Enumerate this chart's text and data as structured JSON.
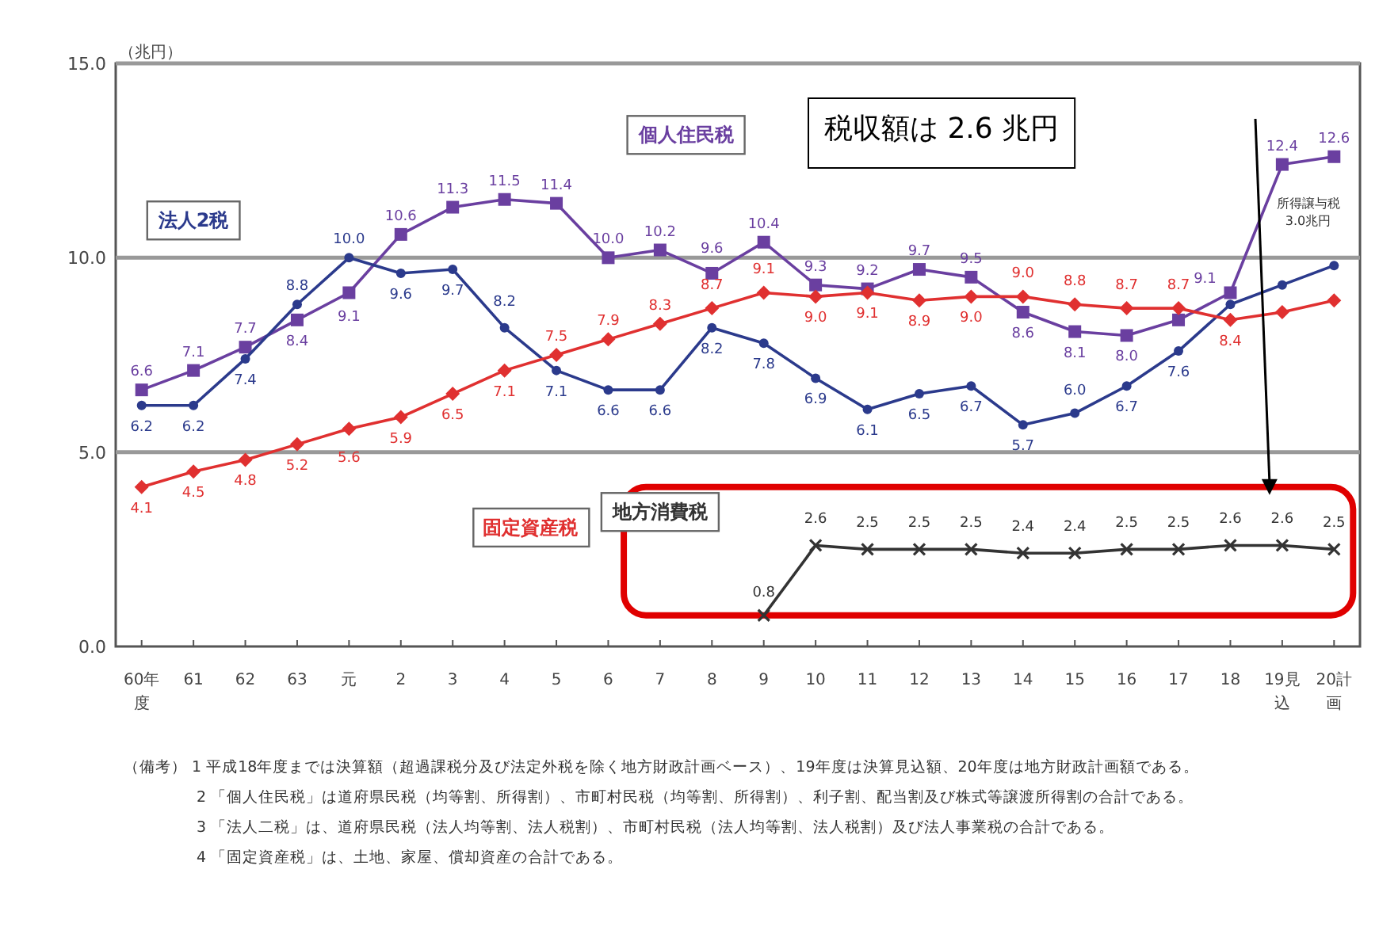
{
  "chart_data": {
    "type": "line",
    "ylabel": "（兆円）",
    "categories": [
      "60年度",
      "61",
      "62",
      "63",
      "元",
      "2",
      "3",
      "4",
      "5",
      "6",
      "7",
      "8",
      "9",
      "10",
      "11",
      "12",
      "13",
      "14",
      "15",
      "16",
      "17",
      "18",
      "19見込",
      "20計画"
    ],
    "ylim": [
      0,
      15
    ],
    "yticks": [
      {
        "value": 0,
        "label": "0.0"
      },
      {
        "value": 5,
        "label": "5.0"
      },
      {
        "value": 10,
        "label": "10.0"
      },
      {
        "value": 15,
        "label": "15.0"
      }
    ],
    "grid": "y",
    "legend": false,
    "series": [
      {
        "name": "個人住民税",
        "color": "#6a3fa0",
        "marker": "square",
        "values": [
          6.6,
          7.1,
          7.7,
          8.4,
          9.1,
          10.6,
          11.3,
          11.5,
          11.4,
          10.0,
          10.2,
          9.6,
          10.4,
          9.3,
          9.2,
          9.7,
          9.5,
          8.6,
          8.1,
          8.0,
          8.4,
          9.1,
          12.4,
          12.6
        ],
        "value_labels": [
          "6.6",
          "7.1",
          "7.7",
          "8.4",
          "9.1",
          "10.6",
          "11.3",
          "11.5",
          "11.4",
          "10.0",
          "10.2",
          "9.6",
          "10.4",
          "9.3",
          "9.2",
          "9.7",
          "9.5",
          "8.6",
          "8.1",
          "8.0",
          null,
          "9.1",
          "12.4",
          "12.6"
        ]
      },
      {
        "name": "法人2税",
        "color": "#2b3a8c",
        "marker": "circle",
        "values": [
          6.2,
          6.2,
          7.4,
          8.8,
          10.0,
          9.6,
          9.7,
          8.2,
          7.1,
          6.6,
          6.6,
          8.2,
          7.8,
          6.9,
          6.1,
          6.5,
          6.7,
          5.7,
          6.0,
          6.7,
          7.6,
          8.8,
          9.3,
          9.8
        ],
        "value_labels": [
          "6.2",
          "6.2",
          "7.4",
          "8.8",
          "10.0",
          "9.6",
          "9.7",
          "8.2",
          "7.1",
          "6.6",
          "6.6",
          "8.2",
          "7.8",
          "6.9",
          "6.1",
          "6.5",
          "6.7",
          "5.7",
          "6.0",
          "6.7",
          "7.6",
          null,
          null,
          null
        ]
      },
      {
        "name": "固定資産税",
        "color": "#e03030",
        "marker": "diamond",
        "values": [
          4.1,
          4.5,
          4.8,
          5.2,
          5.6,
          5.9,
          6.5,
          7.1,
          7.5,
          7.9,
          8.3,
          8.7,
          9.1,
          9.0,
          9.1,
          8.9,
          9.0,
          9.0,
          8.8,
          8.7,
          8.7,
          8.4,
          8.6,
          8.9
        ],
        "value_labels": [
          "4.1",
          "4.5",
          "4.8",
          "5.2",
          "5.6",
          "5.9",
          "6.5",
          "7.1",
          "7.5",
          "7.9",
          "8.3",
          "8.7",
          "9.1",
          "9.0",
          "9.1",
          "8.9",
          "9.0",
          "9.0",
          "8.8",
          "8.7",
          "8.7",
          "8.4",
          null,
          null
        ]
      },
      {
        "name": "地方消費税",
        "color": "#333333",
        "marker": "cross",
        "values": [
          null,
          null,
          null,
          null,
          null,
          null,
          null,
          null,
          null,
          null,
          null,
          null,
          0.8,
          2.6,
          2.5,
          2.5,
          2.5,
          2.4,
          2.4,
          2.5,
          2.5,
          2.6,
          2.6,
          2.5
        ],
        "value_labels": [
          null,
          null,
          null,
          null,
          null,
          null,
          null,
          null,
          null,
          null,
          null,
          null,
          "0.8",
          "2.6",
          "2.5",
          "2.5",
          "2.5",
          "2.4",
          "2.4",
          "2.5",
          "2.5",
          "2.6",
          "2.6",
          "2.5"
        ]
      }
    ],
    "annotations": [
      "税収額は 2.6 兆円",
      "所得譲与税 3.0兆円",
      "（備考） 1 平成18年度までは決算額（超過課税分及び法定外税を除く地方財政計画ベース）、19年度は決算見込額、20年度は地方財政計画額である。",
      "2 「個人住民税」は道府県民税（均等割、所得割）、市町村民税（均等割、所得割）、利子割、配当割及び株式等譲渡所得割の合計である。",
      "3 「法人二税」は、道府県民税（法人均等割、法人税割）、市町村民税（法人均等割、法人税割）及び法人事業税の合計である。",
      "4 「固定資産税」は、土地、家屋、償却資産の合計である。"
    ]
  }
}
